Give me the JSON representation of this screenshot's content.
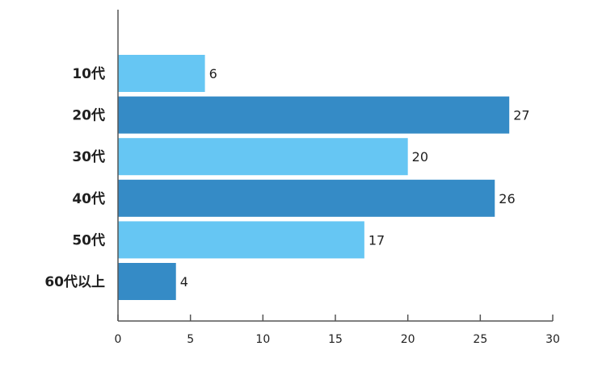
{
  "chart_data": {
    "type": "bar",
    "orientation": "horizontal",
    "categories": [
      "10代",
      "20代",
      "30代",
      "40代",
      "50代",
      "60代以上"
    ],
    "values": [
      6,
      27,
      20,
      26,
      17,
      4
    ],
    "bar_colors": [
      "#66c6f3",
      "#358bc6",
      "#66c6f3",
      "#358bc6",
      "#66c6f3",
      "#358bc6"
    ],
    "xlim": [
      0,
      30
    ],
    "xticks": [
      0,
      5,
      10,
      15,
      20,
      25,
      30
    ],
    "title": "",
    "xlabel": "",
    "ylabel": "",
    "grid": false,
    "legend": false
  },
  "colors": {
    "light_bar": "#66c6f3",
    "dark_bar": "#358bc6",
    "axis": "#555555",
    "text": "#1f1f1f"
  }
}
